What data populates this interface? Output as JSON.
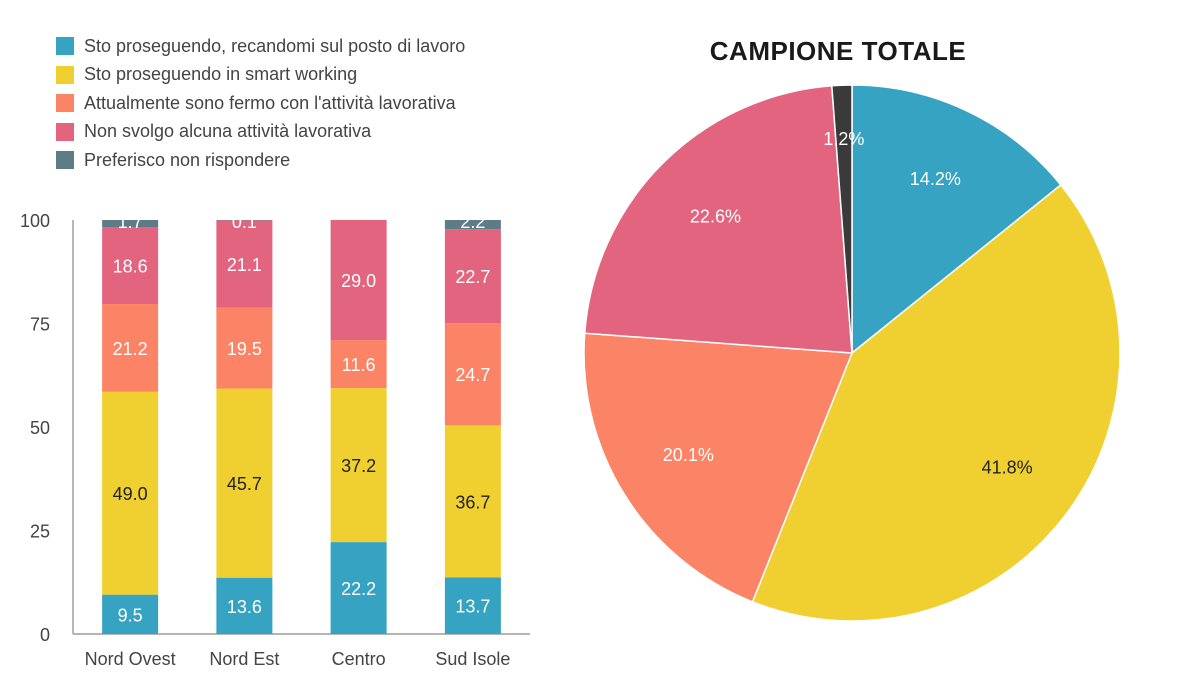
{
  "legend": [
    {
      "label": "Sto proseguendo, recandomi sul posto di lavoro",
      "color": "#35A3C1"
    },
    {
      "label": "Sto proseguendo in smart working",
      "color": "#F0D030"
    },
    {
      "label": "Attualmente sono fermo con l'attività lavorativa",
      "color": "#FB8466"
    },
    {
      "label": "Non svolgo alcuna attività lavorativa",
      "color": "#E3647E"
    },
    {
      "label": "Preferisco non rispondere",
      "color": "#5E7C86"
    }
  ],
  "chart_data": [
    {
      "type": "bar",
      "stacked": true,
      "categories": [
        "Nord Ovest",
        "Nord Est",
        "Centro",
        "Sud Isole"
      ],
      "series": [
        {
          "name": "Sto proseguendo, recandomi sul posto di lavoro",
          "color": "#35A3C1",
          "values": [
            9.5,
            13.6,
            22.2,
            13.7
          ],
          "labels": [
            "9.5",
            "13.6",
            "22.2",
            "13.7"
          ],
          "label_color": "#ffffff"
        },
        {
          "name": "Sto proseguendo in smart working",
          "color": "#F0D030",
          "values": [
            49.0,
            45.7,
            37.2,
            36.7
          ],
          "labels": [
            "49.0",
            "45.7",
            "37.2",
            "36.7"
          ],
          "label_color": "#222222"
        },
        {
          "name": "Attualmente sono fermo con l'attività lavorativa",
          "color": "#FB8466",
          "values": [
            21.2,
            19.5,
            11.6,
            24.7
          ],
          "labels": [
            "21.2",
            "19.5",
            "11.6",
            "24.7"
          ],
          "label_color": "#ffffff"
        },
        {
          "name": "Non svolgo alcuna attività lavorativa",
          "color": "#E3647E",
          "values": [
            18.6,
            21.1,
            29.0,
            22.7
          ],
          "labels": [
            "18.6",
            "21.1",
            "29.0",
            "22.7"
          ],
          "label_color": "#ffffff"
        },
        {
          "name": "Preferisco non rispondere",
          "color": "#5E7C86",
          "values": [
            1.7,
            0.1,
            0.0,
            2.2
          ],
          "labels": [
            "1.7",
            "0.1",
            "",
            "2.2"
          ],
          "label_color": "#ffffff"
        }
      ],
      "ylim": [
        0,
        100
      ],
      "yticks": [
        0,
        25,
        50,
        75,
        100
      ],
      "grid": false
    },
    {
      "type": "pie",
      "title": "CAMPIONE TOTALE",
      "slices": [
        {
          "name": "Sto proseguendo, recandomi sul posto di lavoro",
          "value": 14.2,
          "label": "14.2%",
          "color": "#35A3C1"
        },
        {
          "name": "Sto proseguendo in smart working",
          "value": 41.8,
          "label": "41.8%",
          "color": "#F0D030"
        },
        {
          "name": "Attualmente sono fermo con l'attività lavorativa",
          "value": 20.1,
          "label": "20.1%",
          "color": "#FB8466"
        },
        {
          "name": "Non svolgo alcuna attività lavorativa",
          "value": 22.6,
          "label": "22.6%",
          "color": "#E3647E"
        },
        {
          "name": "Preferisco non rispondere",
          "value": 1.2,
          "label": "1.2%",
          "color": "#3A3A3A"
        }
      ]
    }
  ]
}
